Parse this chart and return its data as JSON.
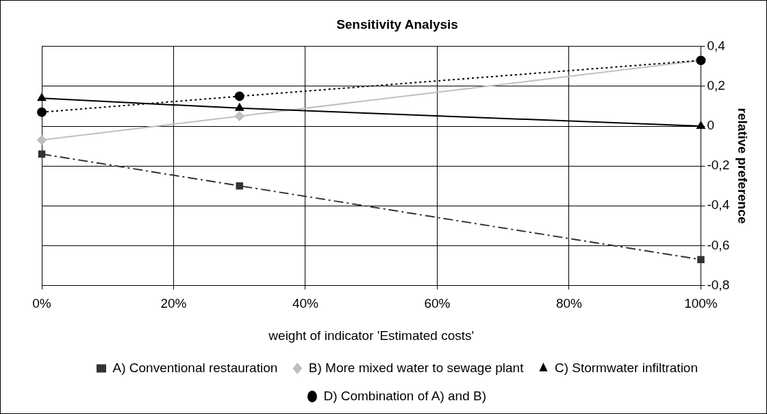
{
  "chart_data": {
    "type": "line",
    "title": "Sensitivity Analysis",
    "xlabel": "weight of indicator 'Estimated costs'",
    "ylabel": "relative preference",
    "x": [
      0,
      30,
      100
    ],
    "series": [
      {
        "name": "A) Conventional restauration",
        "color": "#333333",
        "values": [
          -0.14,
          -0.3,
          -0.67
        ],
        "marker": "square",
        "line_style": "dashed"
      },
      {
        "name": "B) More mixed water to sewage plant",
        "color": "#bfbfbf",
        "values": [
          -0.07,
          0.05,
          0.33
        ],
        "marker": "diamond",
        "line_style": "solid"
      },
      {
        "name": "C) Stormwater infiltration",
        "color": "#000000",
        "values": [
          0.14,
          0.09,
          0
        ],
        "marker": "triangle",
        "line_style": "solid"
      },
      {
        "name": "D) Combination of A) and B)",
        "color": "#000000",
        "values": [
          0.07,
          0.15,
          0.33
        ],
        "marker": "circle",
        "line_style": "dotted"
      }
    ],
    "xlim": [
      0,
      100
    ],
    "xticks": [
      {
        "value": 0,
        "label": "0%"
      },
      {
        "value": 20,
        "label": "20%"
      },
      {
        "value": 40,
        "label": "40%"
      },
      {
        "value": 60,
        "label": "60%"
      },
      {
        "value": 80,
        "label": "80%"
      },
      {
        "value": 100,
        "label": "100%"
      }
    ],
    "ylim": [
      -0.8,
      0.4
    ],
    "yticks": [
      {
        "value": -0.8,
        "label": "-0,8"
      },
      {
        "value": -0.6,
        "label": "-0,6"
      },
      {
        "value": -0.4,
        "label": "-0,4"
      },
      {
        "value": -0.2,
        "label": "-0,2"
      },
      {
        "value": 0,
        "label": "0"
      },
      {
        "value": 0.2,
        "label": "0,2"
      },
      {
        "value": 0.4,
        "label": "0,4"
      }
    ],
    "grid": true,
    "legend": "bottom"
  }
}
